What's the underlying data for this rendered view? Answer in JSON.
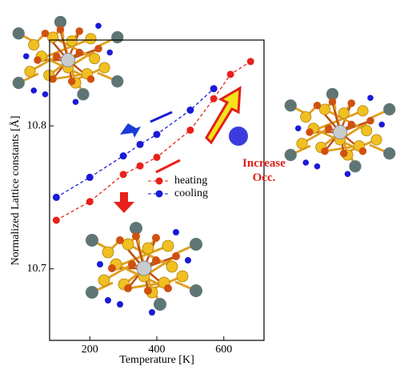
{
  "chart_data": {
    "type": "line",
    "xlabel": "Temperature [K]",
    "ylabel": "Normalized Lattice constants [Å]",
    "annotation": "Increase\nOcc.",
    "xlim": [
      80,
      720
    ],
    "xticks": [
      200,
      400,
      600
    ],
    "ylim": [
      10.65,
      10.86
    ],
    "yticks": [
      10.7,
      10.8
    ],
    "legend": "center",
    "series": [
      {
        "name": "heating",
        "color": "#e8201a",
        "x": [
          100,
          200,
          300,
          350,
          400,
          500,
          570,
          620,
          680
        ],
        "values": [
          10.734,
          10.747,
          10.766,
          10.772,
          10.778,
          10.797,
          10.819,
          10.836,
          10.845
        ]
      },
      {
        "name": "cooling",
        "color": "#1a1ad8",
        "x": [
          100,
          200,
          300,
          350,
          400,
          500,
          570
        ],
        "values": [
          10.75,
          10.764,
          10.779,
          10.787,
          10.794,
          10.811,
          10.826
        ]
      }
    ]
  }
}
